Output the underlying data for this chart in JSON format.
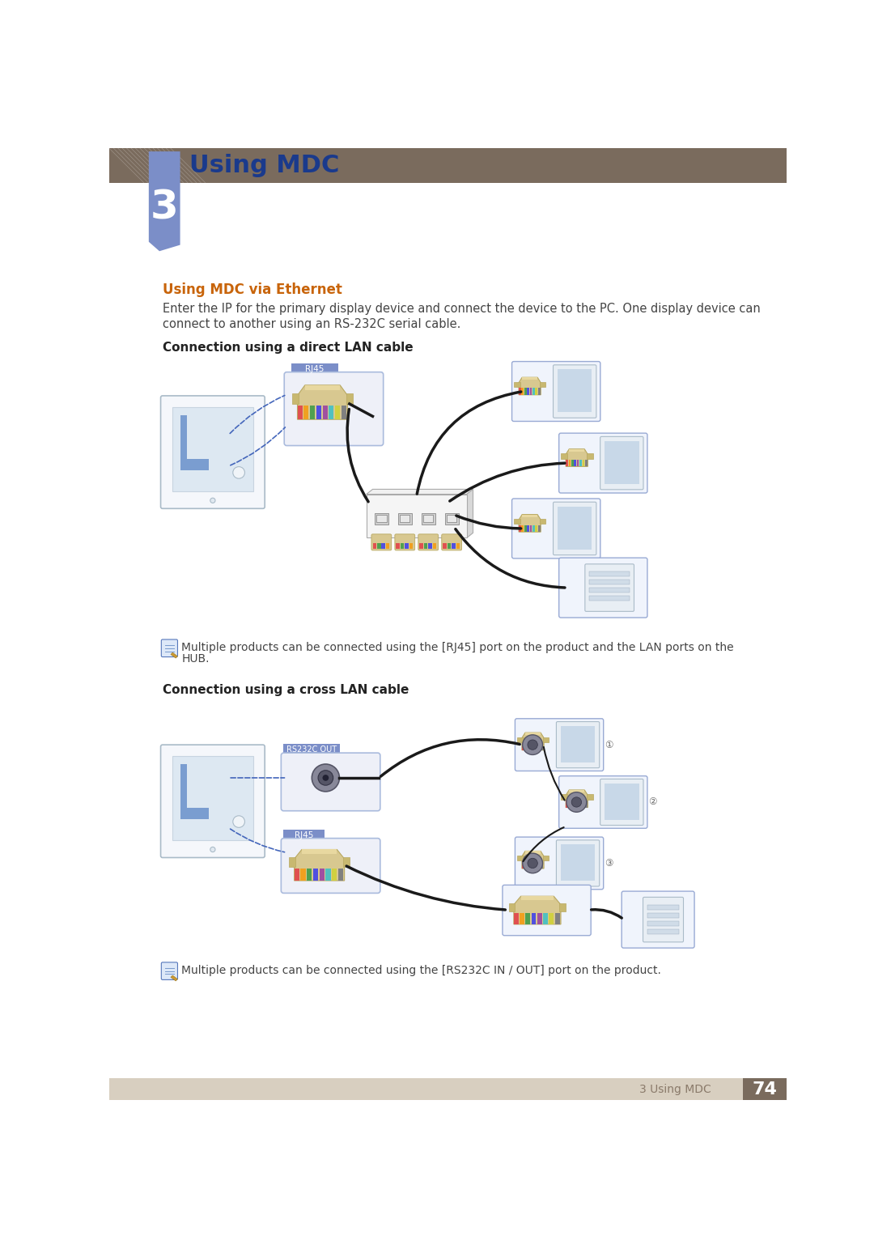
{
  "page_bg": "#ffffff",
  "header_bar_color": "#7a6b5d",
  "chapter_box_color_top": "#7b8ec8",
  "chapter_box_color_bot": "#5a6fa8",
  "chapter_number": "3",
  "chapter_title": "Using MDC",
  "chapter_title_color": "#1a3a8c",
  "footer_bg": "#d8cfc0",
  "footer_text": "3 Using MDC",
  "footer_number": "74",
  "footer_number_bg": "#7a6b5d",
  "section_title": "Using MDC via Ethernet",
  "section_title_color": "#c8640a",
  "body_text_1": "Enter the IP for the primary display device and connect the device to the PC. One display device can",
  "body_text_2": "connect to another using an RS-232C serial cable.",
  "subsection1": "Connection using a direct LAN cable",
  "subsection2": "Connection using a cross LAN cable",
  "note1": "Multiple products can be connected using the [RJ45] port on the product and the LAN ports on the",
  "note1b": "HUB.",
  "note2": "Multiple products can be connected using the [RS232C IN / OUT] port on the product.",
  "text_color": "#444444",
  "diagram_line_color": "#222222",
  "rj45_label_bg": "#7b8ec8",
  "rj45_label_color": "#ffffff",
  "rs232_label_bg": "#7b8ec8",
  "rs232_label_color": "#ffffff",
  "connector_box_border": "#aabbdd",
  "connector_box_fill": "#eef0f8",
  "monitor_border": "#aabbcc",
  "monitor_fill": "#f0f4f8",
  "hub_fill": "#e8e8e8",
  "hub_border": "#aaaaaa",
  "cable_dark": "#1a1a1a",
  "dashed_cable": "#4466aa",
  "note_icon_color": "#4466aa"
}
